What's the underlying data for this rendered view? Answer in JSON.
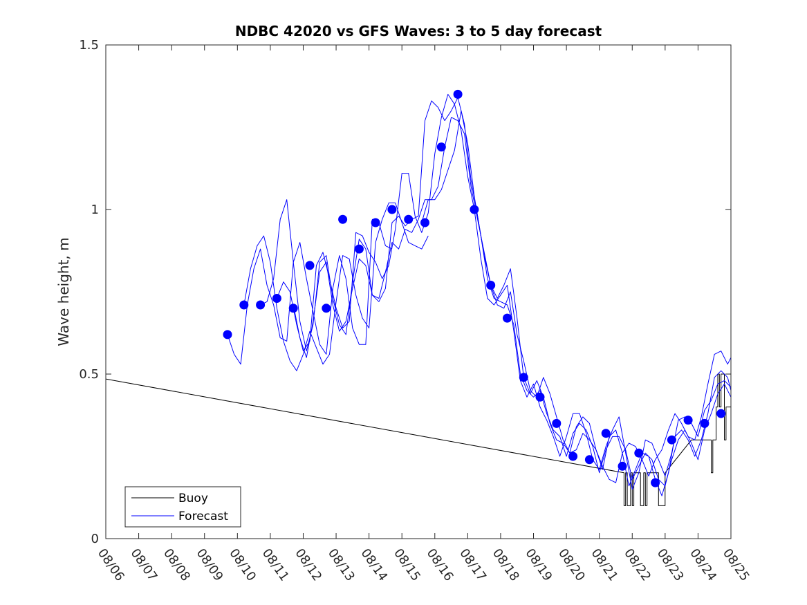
{
  "chart_data": {
    "type": "line",
    "title": "NDBC 42020 vs GFS Waves: 3 to 5 day forecast",
    "xlabel": "",
    "ylabel": "Wave height, m",
    "x_unit": "days since 08/06",
    "xlim": [
      0,
      19
    ],
    "ylim": [
      0,
      1.5
    ],
    "yticks": [
      0,
      0.5,
      1,
      1.5
    ],
    "ytick_labels": [
      "0",
      "0.5",
      "1",
      "1.5"
    ],
    "xtick_labels": [
      "08/06",
      "08/07",
      "08/08",
      "08/09",
      "08/10",
      "08/11",
      "08/12",
      "08/13",
      "08/14",
      "08/15",
      "08/16",
      "08/17",
      "08/18",
      "08/19",
      "08/20",
      "08/21",
      "08/22",
      "08/23",
      "08/24",
      "08/25"
    ],
    "grid": false,
    "legend_position": "bottom-left",
    "legend": [
      "Buoy",
      "Forecast"
    ],
    "colors": {
      "buoy": "#000000",
      "forecast": "#0000ff",
      "axes": "#262626"
    },
    "series": [
      {
        "name": "Buoy",
        "color": "#000000",
        "x": [
          0,
          15.75,
          15.75,
          15.8,
          15.8,
          15.85,
          15.85,
          15.95,
          15.95,
          16.0,
          16.0,
          16.05,
          16.05,
          16.25,
          16.25,
          16.35,
          16.35,
          16.4,
          16.4,
          16.45,
          16.45,
          16.8,
          16.8,
          17.0,
          17.0,
          17.4,
          17.8,
          18.4,
          18.4,
          18.45,
          18.45,
          18.55,
          18.55,
          18.6,
          18.6,
          18.65,
          18.65,
          18.7,
          18.7,
          18.8,
          18.8,
          18.85,
          18.85,
          19.0
        ],
        "y": [
          0.485,
          0.2,
          0.1,
          0.1,
          0.2,
          0.2,
          0.1,
          0.1,
          0.2,
          0.2,
          0.1,
          0.1,
          0.2,
          0.2,
          0.1,
          0.1,
          0.2,
          0.2,
          0.1,
          0.1,
          0.2,
          0.2,
          0.1,
          0.1,
          0.2,
          0.25,
          0.3,
          0.3,
          0.2,
          0.2,
          0.3,
          0.3,
          0.4,
          0.4,
          0.5,
          0.5,
          0.4,
          0.4,
          0.5,
          0.5,
          0.3,
          0.3,
          0.4,
          0.4
        ]
      },
      {
        "name": "Forecast run A",
        "color": "#0000ff",
        "x": [
          3.7,
          3.9,
          4.1,
          4.3,
          4.5,
          4.7,
          4.9,
          5.1,
          5.3,
          5.5,
          5.7,
          5.9,
          6.1,
          6.3,
          6.5,
          6.7,
          6.9,
          7.1,
          7.3,
          7.5,
          7.7,
          7.9,
          8.1,
          8.3,
          8.5,
          8.7
        ],
        "y": [
          0.62,
          0.56,
          0.53,
          0.71,
          0.82,
          0.88,
          0.77,
          0.71,
          0.61,
          0.6,
          0.84,
          0.9,
          0.79,
          0.69,
          0.59,
          0.56,
          0.76,
          0.86,
          0.79,
          0.64,
          0.59,
          0.59,
          0.97,
          0.96,
          0.89,
          0.88
        ]
      },
      {
        "name": "Forecast run B",
        "color": "#0000ff",
        "x": [
          4.2,
          4.4,
          4.6,
          4.8,
          5.0,
          5.2,
          5.4,
          5.6,
          5.8,
          6.0,
          6.2,
          6.4,
          6.6,
          6.8,
          7.0,
          7.2,
          7.4,
          7.6,
          7.8,
          8.0,
          8.2,
          8.4,
          8.6,
          8.8,
          9.0,
          9.2,
          9.4,
          9.6,
          9.8
        ],
        "y": [
          0.71,
          0.82,
          0.89,
          0.92,
          0.84,
          0.7,
          0.6,
          0.54,
          0.51,
          0.56,
          0.63,
          0.58,
          0.53,
          0.56,
          0.72,
          0.86,
          0.85,
          0.74,
          0.67,
          0.64,
          0.9,
          0.97,
          1.02,
          1.02,
          0.96,
          0.9,
          0.89,
          0.88,
          0.92
        ]
      },
      {
        "name": "Forecast run C",
        "color": "#0000ff",
        "x": [
          4.7,
          4.9,
          5.1,
          5.3,
          5.5,
          5.7,
          5.9,
          6.1,
          6.3,
          6.5,
          6.7,
          6.9,
          7.1,
          7.3,
          7.5,
          7.7,
          7.9,
          8.1,
          8.3,
          8.5,
          8.7,
          8.9,
          9.1,
          9.3,
          9.5,
          9.7,
          9.9,
          10.1,
          10.3,
          10.5,
          10.7,
          10.9,
          11.1,
          11.3,
          11.5,
          11.7,
          11.9,
          12.1,
          12.3,
          12.5,
          12.7,
          12.9,
          13.1,
          13.3,
          13.5,
          13.7,
          13.9,
          14.1,
          14.3,
          14.5,
          14.7,
          14.9,
          15.1,
          15.3,
          15.5,
          15.7,
          15.9,
          16.1,
          16.3,
          16.5,
          16.7,
          16.9,
          17.1,
          17.3,
          17.5,
          17.7,
          17.9,
          18.1,
          18.3,
          18.5,
          18.7,
          18.9,
          19.0
        ],
        "y": [
          0.71,
          0.72,
          0.79,
          0.97,
          1.03,
          0.84,
          0.66,
          0.57,
          0.65,
          0.84,
          0.86,
          0.73,
          0.65,
          0.62,
          0.78,
          0.91,
          0.88,
          0.74,
          0.72,
          0.76,
          0.96,
          0.98,
          0.95,
          0.97,
          0.98,
          1.27,
          1.33,
          1.31,
          1.27,
          1.3,
          1.34,
          1.26,
          1.09,
          0.98,
          0.86,
          0.77,
          0.73,
          0.77,
          0.82,
          0.67,
          0.49,
          0.44,
          0.48,
          0.43,
          0.35,
          0.3,
          0.29,
          0.26,
          0.27,
          0.32,
          0.3,
          0.27,
          0.22,
          0.18,
          0.17,
          0.26,
          0.29,
          0.28,
          0.24,
          0.19,
          0.24,
          0.27,
          0.33,
          0.38,
          0.35,
          0.31,
          0.3,
          0.37,
          0.47,
          0.56,
          0.57,
          0.53,
          0.55
        ]
      },
      {
        "name": "Forecast run D",
        "color": "#0000ff",
        "x": [
          5.2,
          5.4,
          5.6,
          5.8,
          6.0,
          6.2,
          6.4,
          6.6,
          6.8,
          7.0,
          7.2,
          7.4,
          7.6,
          7.8,
          8.0,
          8.2,
          8.4,
          8.6,
          8.8,
          9.0,
          9.2,
          9.4,
          9.6,
          9.8,
          10.0,
          10.2,
          10.4,
          10.6,
          10.8,
          11.0,
          11.2,
          11.4,
          11.6,
          11.8,
          12.0,
          12.2,
          12.4,
          12.6,
          12.8,
          13.0,
          13.2,
          13.4,
          13.6,
          13.8,
          14.0,
          14.2,
          14.4,
          14.6,
          14.8,
          15.0,
          15.2,
          15.4,
          15.6,
          15.8,
          16.0,
          16.2,
          16.4,
          16.6,
          16.8,
          17.0,
          17.2,
          17.4,
          17.6,
          17.8,
          18.0,
          18.2,
          18.4,
          18.6,
          18.8,
          19.0
        ],
        "y": [
          0.73,
          0.78,
          0.75,
          0.65,
          0.57,
          0.6,
          0.83,
          0.87,
          0.79,
          0.7,
          0.64,
          0.66,
          0.93,
          0.92,
          0.87,
          0.84,
          0.79,
          0.83,
          0.94,
          1.11,
          1.11,
          0.98,
          0.93,
          0.99,
          1.17,
          1.28,
          1.35,
          1.32,
          1.24,
          1.1,
          1.0,
          0.85,
          0.73,
          0.71,
          0.74,
          0.77,
          0.63,
          0.48,
          0.43,
          0.47,
          0.4,
          0.36,
          0.31,
          0.25,
          0.31,
          0.38,
          0.38,
          0.32,
          0.24,
          0.21,
          0.28,
          0.33,
          0.37,
          0.26,
          0.15,
          0.2,
          0.3,
          0.29,
          0.24,
          0.19,
          0.26,
          0.36,
          0.37,
          0.35,
          0.31,
          0.39,
          0.42,
          0.47,
          0.48,
          0.46
        ]
      },
      {
        "name": "Forecast run E",
        "color": "#0000ff",
        "x": [
          5.7,
          5.9,
          6.1,
          6.3,
          6.5,
          6.7,
          6.9,
          7.1,
          7.3,
          7.5,
          7.7,
          7.9,
          8.1,
          8.3,
          8.5,
          8.7,
          8.9,
          9.1,
          9.3,
          9.5,
          9.7,
          9.9,
          10.1,
          10.3,
          10.5,
          10.7,
          10.9,
          11.1,
          11.3,
          11.5,
          11.7,
          11.9,
          12.1,
          12.3,
          12.5,
          12.7,
          12.9,
          13.1,
          13.3,
          13.5,
          13.7,
          13.9,
          14.1,
          14.3,
          14.5,
          14.7,
          14.9,
          15.1,
          15.3,
          15.5,
          15.7,
          15.9,
          16.1,
          16.3,
          16.5,
          16.7,
          16.9,
          17.1,
          17.3,
          17.5,
          17.7,
          17.9,
          18.1,
          18.3,
          18.5,
          18.7,
          18.9,
          19.0
        ],
        "y": [
          0.71,
          0.61,
          0.55,
          0.66,
          0.81,
          0.84,
          0.71,
          0.63,
          0.66,
          0.76,
          0.85,
          0.83,
          0.74,
          0.73,
          0.81,
          0.9,
          0.88,
          0.94,
          0.93,
          0.97,
          1.03,
          1.03,
          1.07,
          1.19,
          1.28,
          1.27,
          1.23,
          1.07,
          0.97,
          0.87,
          0.77,
          0.71,
          0.7,
          0.75,
          0.62,
          0.54,
          0.45,
          0.43,
          0.49,
          0.44,
          0.37,
          0.3,
          0.26,
          0.34,
          0.37,
          0.35,
          0.27,
          0.21,
          0.31,
          0.33,
          0.26,
          0.16,
          0.21,
          0.26,
          0.25,
          0.18,
          0.13,
          0.2,
          0.31,
          0.33,
          0.3,
          0.25,
          0.3,
          0.38,
          0.49,
          0.51,
          0.49,
          0.45
        ]
      },
      {
        "name": "Forecast run F",
        "color": "#0000ff",
        "x": [
          9.6,
          9.8,
          10.0,
          10.2,
          10.4,
          10.6,
          10.8,
          11.0,
          11.2,
          11.4,
          11.6,
          11.8,
          12.0,
          12.2,
          12.4,
          12.6,
          12.8,
          13.0,
          13.2,
          13.4,
          13.6,
          13.8,
          14.0,
          14.2,
          14.4,
          14.6,
          14.8,
          15.0,
          15.2,
          15.4,
          15.6,
          15.8,
          16.0,
          16.2,
          16.4,
          16.6,
          16.8,
          17.0,
          17.2,
          17.4,
          17.6,
          17.8,
          18.0,
          18.2,
          18.4,
          18.6,
          18.8,
          19.0
        ],
        "y": [
          0.96,
          1.03,
          1.03,
          1.06,
          1.12,
          1.18,
          1.3,
          1.2,
          1.04,
          0.92,
          0.79,
          0.73,
          0.72,
          0.71,
          0.65,
          0.5,
          0.45,
          0.43,
          0.45,
          0.38,
          0.33,
          0.31,
          0.25,
          0.32,
          0.35,
          0.33,
          0.28,
          0.2,
          0.27,
          0.31,
          0.31,
          0.27,
          0.18,
          0.22,
          0.26,
          0.24,
          0.18,
          0.16,
          0.24,
          0.3,
          0.33,
          0.29,
          0.24,
          0.33,
          0.38,
          0.44,
          0.47,
          0.43
        ]
      }
    ],
    "markers": {
      "name": "Forecast points",
      "color": "#0000ff",
      "x": [
        3.7,
        4.2,
        4.7,
        5.2,
        5.7,
        6.2,
        6.7,
        7.2,
        7.7,
        8.2,
        8.7,
        9.2,
        9.7,
        10.2,
        10.7,
        11.2,
        11.7,
        12.2,
        12.7,
        13.2,
        13.7,
        14.2,
        14.7,
        15.2,
        15.7,
        16.2,
        16.7,
        17.2,
        17.7,
        18.2,
        18.7
      ],
      "y": [
        0.62,
        0.71,
        0.71,
        0.73,
        0.7,
        0.83,
        0.7,
        0.97,
        0.88,
        0.96,
        1.0,
        0.97,
        0.96,
        1.19,
        1.35,
        1.0,
        0.77,
        0.67,
        0.49,
        0.43,
        0.35,
        0.25,
        0.24,
        0.32,
        0.22,
        0.26,
        0.17,
        0.3,
        0.36,
        0.35,
        0.38
      ]
    }
  }
}
